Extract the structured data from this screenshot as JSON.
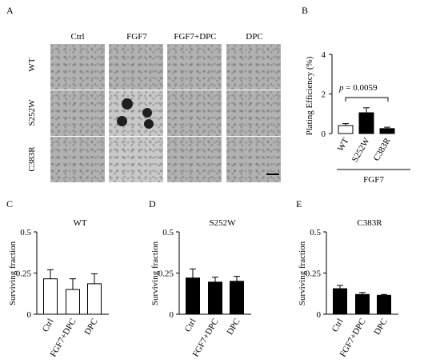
{
  "panels": {
    "A": "A",
    "B": "B",
    "C": "C",
    "D": "D",
    "E": "E"
  },
  "panel_a": {
    "columns": [
      "Ctrl",
      "FGF7",
      "FGF7+DPC",
      "DPC"
    ],
    "rows": [
      "WT",
      "S252W",
      "C383R"
    ]
  },
  "chart_data": [
    {
      "id": "B",
      "type": "bar",
      "categories": [
        "WT",
        "S252W",
        "C383R"
      ],
      "values": [
        0.4,
        1.05,
        0.25
      ],
      "errors": [
        0.1,
        0.25,
        0.07
      ],
      "colors": [
        "#ffffff",
        "#000000",
        "#000000"
      ],
      "ylabel": "Plating Efficiency (%)",
      "ylim": [
        0,
        4
      ],
      "yticks": [
        0,
        2,
        4
      ],
      "annotation": "p = 0.0059",
      "annotation_p": "p",
      "annotation_rest": " = 0.0059",
      "group_label": "FGF7"
    },
    {
      "id": "C",
      "type": "bar",
      "title": "WT",
      "categories": [
        "Ctrl",
        "FGF7+DPC",
        "DPC"
      ],
      "values": [
        0.215,
        0.15,
        0.185
      ],
      "errors": [
        0.055,
        0.065,
        0.06
      ],
      "fill": "#ffffff",
      "ylabel": "Surviving fraction",
      "ylim": [
        0,
        0.5
      ],
      "yticks": [
        "0",
        "0.25",
        "0.5"
      ]
    },
    {
      "id": "D",
      "type": "bar",
      "title": "S252W",
      "categories": [
        "Ctrl",
        "FGF7+DPC",
        "DPC"
      ],
      "values": [
        0.22,
        0.195,
        0.2
      ],
      "errors": [
        0.055,
        0.03,
        0.03
      ],
      "fill": "#000000",
      "ylabel": "Surviving fraction",
      "ylim": [
        0,
        0.5
      ],
      "yticks": [
        "0",
        "0.25",
        "0.5"
      ]
    },
    {
      "id": "E",
      "type": "bar",
      "title": "C383R",
      "categories": [
        "Ctrl",
        "FGF7+DPC",
        "DPC"
      ],
      "values": [
        0.155,
        0.12,
        0.115
      ],
      "errors": [
        0.02,
        0.012,
        0.005
      ],
      "fill": "#000000",
      "ylabel": "Surviving fraction",
      "ylim": [
        0,
        0.5
      ],
      "yticks": [
        "0",
        "0.25",
        "0.5"
      ]
    }
  ]
}
